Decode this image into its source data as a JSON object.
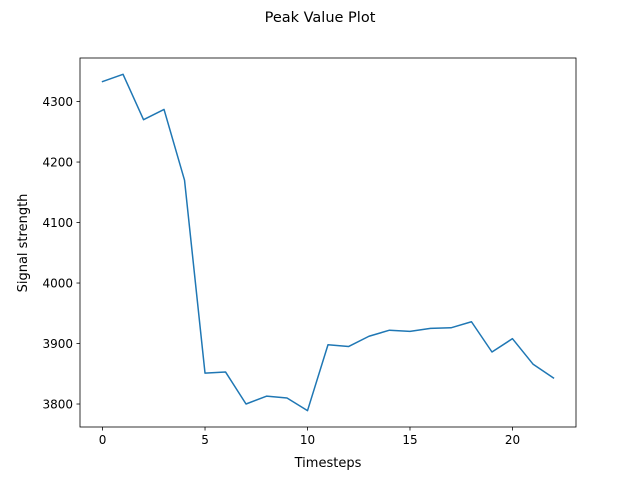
{
  "colors": {
    "background": "#ffffff",
    "line": "#1f77b4",
    "axis": "#000000"
  },
  "chart_data": {
    "type": "line",
    "title": "Peak Value Plot",
    "xlabel": "Timesteps",
    "ylabel": "Signal strength",
    "xlim": [
      -1.1,
      23.1
    ],
    "ylim": [
      3762,
      4372
    ],
    "xticks": [
      0,
      5,
      10,
      15,
      20
    ],
    "yticks": [
      3800,
      3900,
      4000,
      4100,
      4200,
      4300
    ],
    "grid": false,
    "series": [
      {
        "x": [
          0,
          1,
          2,
          3,
          4,
          5,
          6,
          7,
          8,
          9,
          10,
          11,
          12,
          13,
          14,
          15,
          16,
          17,
          18,
          19,
          20,
          21,
          22
        ],
        "values": [
          4333,
          4345,
          4270,
          4287,
          4170,
          3851,
          3853,
          3800,
          3813,
          3810,
          3789,
          3898,
          3895,
          3912,
          3922,
          3920,
          3925,
          3926,
          3936,
          3886,
          3908,
          3866,
          3843
        ]
      }
    ]
  }
}
